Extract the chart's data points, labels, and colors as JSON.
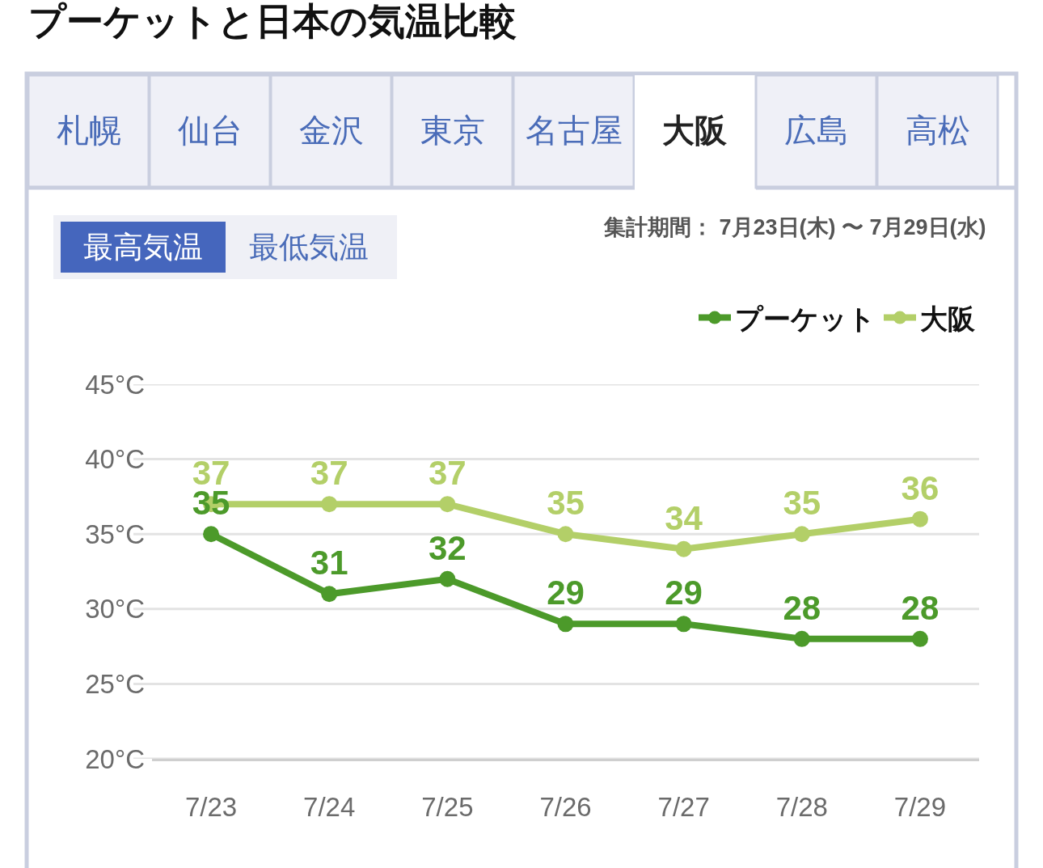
{
  "chart_data": {
    "type": "line",
    "title": "プーケットと日本の気温比較",
    "categories": [
      "7/23",
      "7/24",
      "7/25",
      "7/26",
      "7/27",
      "7/28",
      "7/29"
    ],
    "series": [
      {
        "name": "プーケット",
        "color": "#4c9a2a",
        "values": [
          35,
          31,
          32,
          29,
          29,
          28,
          28
        ]
      },
      {
        "name": "大阪",
        "color": "#b3cf68",
        "values": [
          37,
          37,
          37,
          35,
          34,
          35,
          36
        ]
      }
    ],
    "ylim": [
      20,
      45
    ],
    "yticks": [
      {
        "value": 20,
        "label": "20°C"
      },
      {
        "value": 25,
        "label": "25°C"
      },
      {
        "value": 30,
        "label": "30°C"
      },
      {
        "value": 35,
        "label": "35°C"
      },
      {
        "value": 40,
        "label": "40°C"
      },
      {
        "value": 45,
        "label": "45°C"
      }
    ],
    "grid": "y",
    "legend": "top right",
    "marker": "circle",
    "line_style": "solid",
    "data_labels": true,
    "annotations": [
      "札幌",
      "仙台",
      "金沢",
      "東京",
      "名古屋",
      "大阪",
      "広島",
      "高松",
      "最高気温",
      "最低気温",
      "集計期間： 7月23日(木) 〜 7月29日(水)"
    ]
  }
}
